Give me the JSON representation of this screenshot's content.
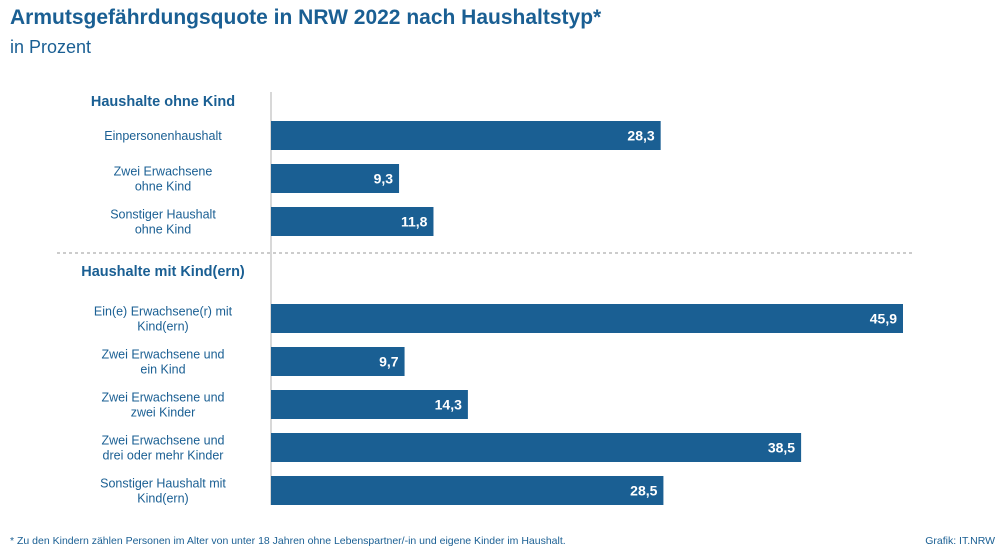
{
  "title": "Armutsgefährdungsquote in NRW 2022 nach Haushaltstyp*",
  "subtitle": "in Prozent",
  "footnote": "*  Zu den Kindern zählen Personen im Alter von unter 18 Jahren ohne Lebenspartner/-in und eigene Kinder im Haushalt.",
  "source": "Grafik: IT.NRW",
  "colors": {
    "bar": "#1a5f93",
    "text": "#1a5f93",
    "bar_label": "#ffffff",
    "axis": "#b0b0b0",
    "divider": "#999999"
  },
  "chart_data": {
    "type": "bar",
    "orientation": "horizontal",
    "title": "Armutsgefährdungsquote in NRW 2022 nach Haushaltstyp*",
    "subtitle": "in Prozent",
    "groups": [
      {
        "label": "Haushalte ohne Kind",
        "categories": [
          [
            "Einpersonenhaushalt"
          ],
          [
            "Zwei Erwachsene",
            "ohne Kind"
          ],
          [
            "Sonstiger Haushalt",
            "ohne Kind"
          ]
        ],
        "values": [
          28.3,
          9.3,
          11.8
        ],
        "value_labels": [
          "28,3",
          "9,3",
          "11,8"
        ]
      },
      {
        "label": "Haushalte mit Kind(ern)",
        "categories": [
          [
            "Ein(e) Erwachsene(r) mit",
            "Kind(ern)"
          ],
          [
            "Zwei Erwachsene und",
            "ein Kind"
          ],
          [
            "Zwei Erwachsene und",
            "zwei Kinder"
          ],
          [
            "Zwei Erwachsene und",
            "drei oder mehr Kinder"
          ],
          [
            "Sonstiger Haushalt mit",
            "Kind(ern)"
          ]
        ],
        "values": [
          45.9,
          9.7,
          14.3,
          38.5,
          28.5
        ],
        "value_labels": [
          "45,9",
          "9,7",
          "14,3",
          "38,5",
          "28,5"
        ]
      }
    ],
    "xlim": [
      0,
      45.9
    ],
    "grid": false,
    "legend": "none"
  }
}
